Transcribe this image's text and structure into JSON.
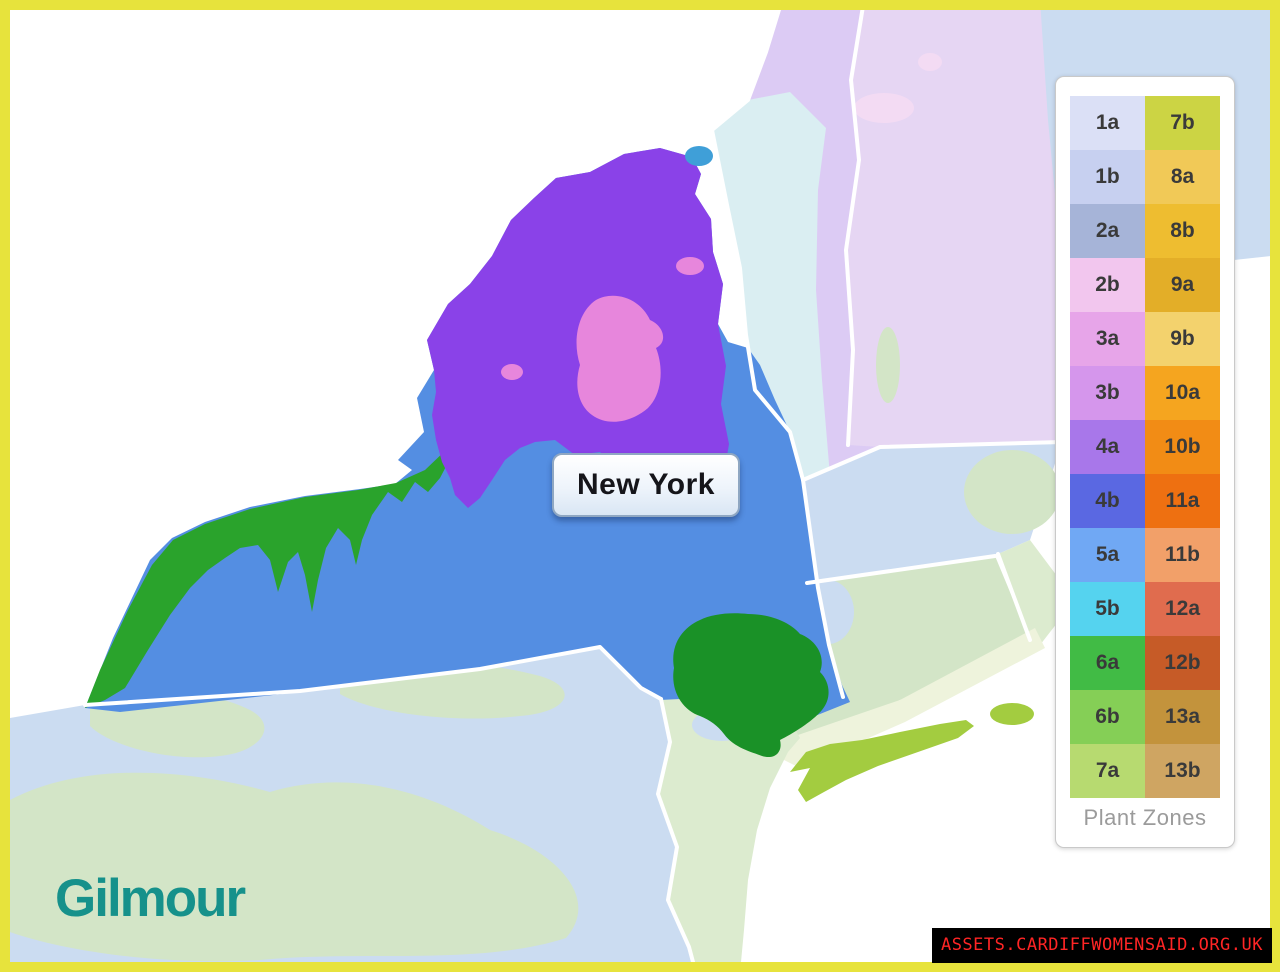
{
  "map": {
    "state_label": "New York",
    "colors": {
      "background": "#ffffff",
      "ny_main": "#548ee2",
      "ny_adirondacks": "#8a42e8",
      "ny_adirondack_core": "#e786dc",
      "ny_west": "#2aa32c",
      "ny_southeast": "#1a9127",
      "ny_long_island": "#a3cc40",
      "ny_champlain": "#3f9fd8",
      "pale_lavender": "#dccbf4",
      "pale_lavender_light": "#e6d6f3",
      "pale_pink": "#f3dbf3",
      "pale_cyan": "#daeef2",
      "pale_blue": "#cbdcf1",
      "pale_green": "#d3e5c7",
      "pale_green_light": "#dcebcf",
      "coast_cream": "#eef3dc"
    }
  },
  "legend": {
    "title": "Plant Zones",
    "columns": [
      [
        {
          "label": "1a",
          "color": "#dbe0f6"
        },
        {
          "label": "1b",
          "color": "#c7d0f0"
        },
        {
          "label": "2a",
          "color": "#a6b4d8"
        },
        {
          "label": "2b",
          "color": "#f2c6ee"
        },
        {
          "label": "3a",
          "color": "#e7a5e9"
        },
        {
          "label": "3b",
          "color": "#d596ec"
        },
        {
          "label": "4a",
          "color": "#a877ea"
        },
        {
          "label": "4b",
          "color": "#5a68e2"
        },
        {
          "label": "5a",
          "color": "#70a8f4"
        },
        {
          "label": "5b",
          "color": "#55d3ef"
        },
        {
          "label": "6a",
          "color": "#41bb45"
        },
        {
          "label": "6b",
          "color": "#85cf56"
        },
        {
          "label": "7a",
          "color": "#b7da70"
        }
      ],
      [
        {
          "label": "7b",
          "color": "#ccd444"
        },
        {
          "label": "8a",
          "color": "#f1c957"
        },
        {
          "label": "8b",
          "color": "#eebd30"
        },
        {
          "label": "9a",
          "color": "#e3ae28"
        },
        {
          "label": "9b",
          "color": "#f3d26d"
        },
        {
          "label": "10a",
          "color": "#f5a51f"
        },
        {
          "label": "10b",
          "color": "#f28c15"
        },
        {
          "label": "11a",
          "color": "#ee7011"
        },
        {
          "label": "11b",
          "color": "#f2a069"
        },
        {
          "label": "12a",
          "color": "#e06c4e"
        },
        {
          "label": "12b",
          "color": "#c65b27"
        },
        {
          "label": "13a",
          "color": "#c3933c"
        },
        {
          "label": "13b",
          "color": "#cfa562"
        }
      ]
    ]
  },
  "logo": {
    "text": "Gilmour",
    "color": "#16918b"
  },
  "watermark": {
    "text": "ASSETS.CARDIFFWOMENSAID.ORG.UK",
    "bg": "#000000",
    "color": "#ff2525"
  },
  "frame": {
    "color": "#e7e33c"
  }
}
